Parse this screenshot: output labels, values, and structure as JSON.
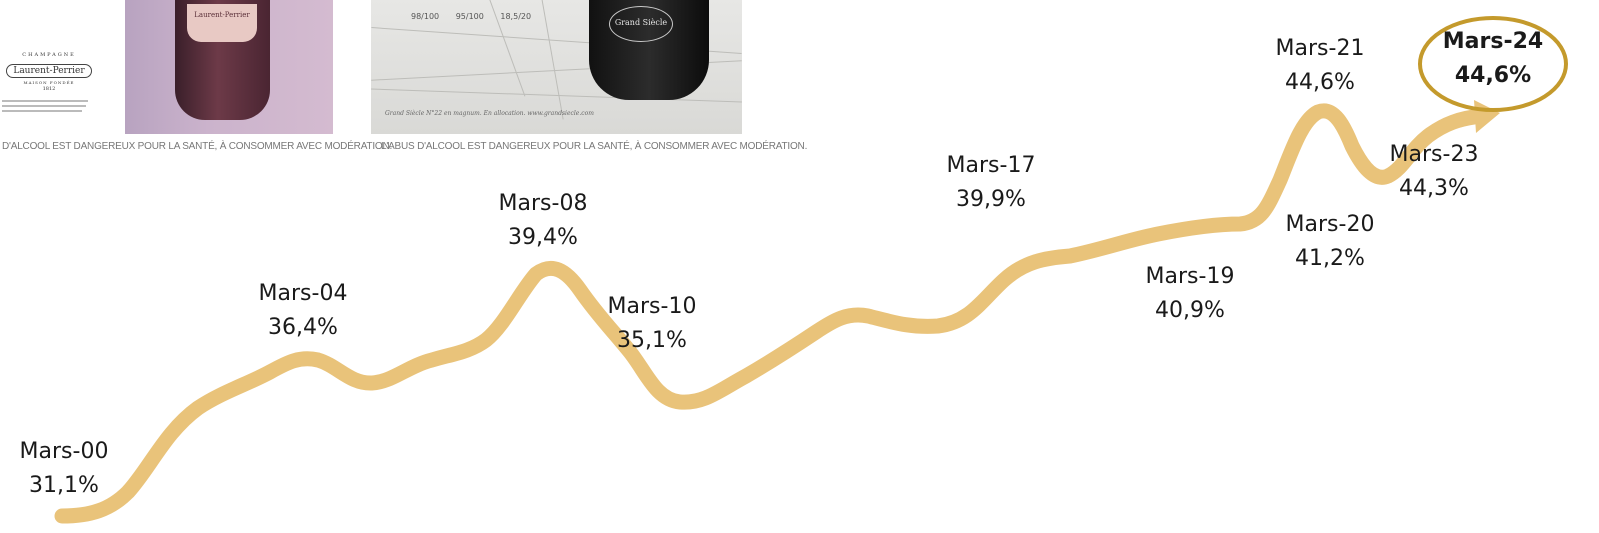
{
  "ads": [
    {
      "brand": {
        "line1": "CHAMPAGNE",
        "line2": "Laurent-Perrier",
        "line3": "MAISON FONDÉE",
        "line4": "1812"
      },
      "bottle_label": "Laurent-Perrier",
      "disclaimer": "D'ALCOOL EST DANGEREUX POUR LA SANTÉ, À CONSOMMER AVEC MODÉRATION."
    },
    {
      "scores": "98/100 95/100 18,5/20",
      "bottle_label": "Grand Siècle",
      "caption": "Grand Siècle N°22 en magnum. En allocation. www.grandsiecle.com",
      "disclaimer": "L'ABUS D'ALCOOL EST DANGEREUX POUR LA SANTÉ, À CONSOMMER AVEC MODÉRATION."
    }
  ],
  "chart_data": {
    "type": "line",
    "title": "",
    "xlabel": "",
    "ylabel": "",
    "line_color": "#e9c37a",
    "highlight_color": "#c49a2c",
    "points": [
      {
        "label": "Mars-00",
        "value": "31,1%"
      },
      {
        "label": "Mars-04",
        "value": "36,4%"
      },
      {
        "label": "Mars-08",
        "value": "39,4%"
      },
      {
        "label": "Mars-10",
        "value": "35,1%"
      },
      {
        "label": "Mars-17",
        "value": "39,9%"
      },
      {
        "label": "Mars-19",
        "value": "40,9%"
      },
      {
        "label": "Mars-20",
        "value": "41,2%"
      },
      {
        "label": "Mars-21",
        "value": "44,6%"
      },
      {
        "label": "Mars-23",
        "value": "44,3%"
      },
      {
        "label": "Mars-24",
        "value": "44,6%",
        "highlight": true
      }
    ]
  }
}
